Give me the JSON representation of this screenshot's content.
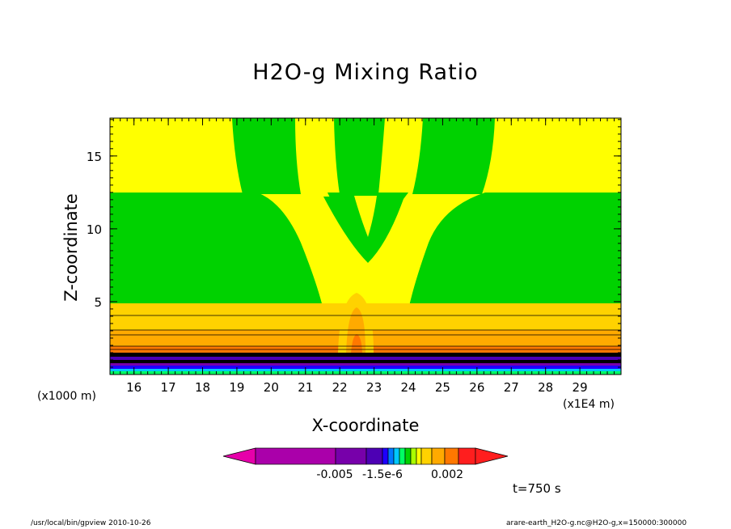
{
  "chart_data": {
    "type": "heatmap",
    "title": "H2O-g Mixing Ratio",
    "xlabel": "X-coordinate",
    "ylabel": "Z-coordinate",
    "x_unit_note": "(x1E4 m)",
    "y_unit_note": "(x1000 m)",
    "xlim": [
      15.3,
      30.2
    ],
    "ylim": [
      0,
      17.6
    ],
    "x_ticks": [
      16,
      17,
      18,
      19,
      20,
      21,
      22,
      23,
      24,
      25,
      26,
      27,
      28,
      29
    ],
    "y_ticks": [
      5,
      10,
      15
    ],
    "colorbar": {
      "colors": [
        "#e600aa",
        "#aa00aa",
        "#7700aa",
        "#4d00b4",
        "#1e00ff",
        "#0078ff",
        "#00c8ff",
        "#00ff64",
        "#00d200",
        "#aaff00",
        "#ffff00",
        "#ffd200",
        "#ffaa00",
        "#ff7800",
        "#ff1e1e"
      ],
      "tick_labels": [
        "-0.005",
        "-1.5e-6",
        "0.002"
      ]
    },
    "time_label": "t=750 s"
  },
  "footer": {
    "left": "/usr/local/bin/gpview  2010-10-26",
    "right": "arare-earth_H2O-g.nc@H2O-g,x=150000:300000"
  }
}
